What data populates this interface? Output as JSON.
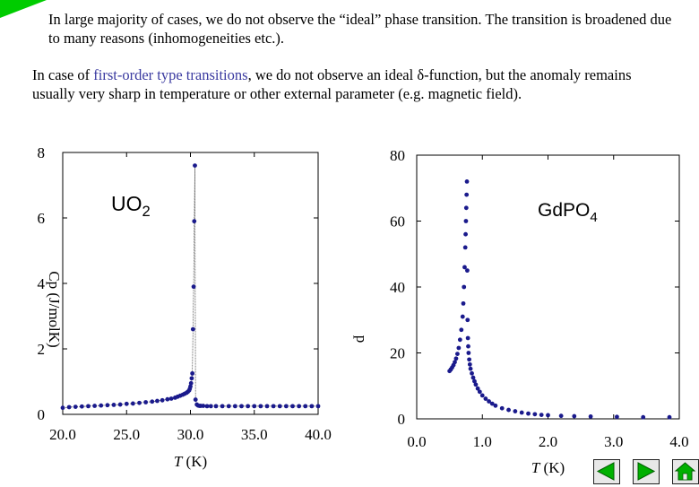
{
  "slide": {
    "intro_text": "In large majority of cases, we do not observe the “ideal” phase transition. The transition is broadened due to many reasons (inhomogeneities etc.).",
    "para_prefix": "In case of ",
    "para_highlight": "first-order type transitions",
    "para_suffix": ", we do not observe an ideal δ-function, but the anomaly remains usually very sharp in temperature or other external parameter (e.g. magnetic field).",
    "accent_color": "#3a3aa0",
    "corner_color": "#00cc00"
  },
  "chart_data": [
    {
      "type": "scatter",
      "title_main": "UO",
      "title_sub": "2",
      "ylabel_fragments": [
        "Cp",
        "(J/molK)"
      ],
      "xlabel_italic": "T",
      "xlabel_unit": " (K)",
      "xlim": [
        20,
        40
      ],
      "ylim": [
        0,
        8
      ],
      "xticks": [
        "20.0",
        "25.0",
        "30.0",
        "35.0",
        "40.0"
      ],
      "yticks": [
        "0",
        "2",
        "4",
        "6",
        "8"
      ],
      "marker_color": "#1a1a8c",
      "connected": true,
      "x": [
        20.0,
        20.5,
        21.0,
        21.5,
        22.0,
        22.5,
        23.0,
        23.5,
        24.0,
        24.5,
        25.0,
        25.5,
        26.0,
        26.5,
        27.0,
        27.4,
        27.8,
        28.2,
        28.5,
        28.8,
        29.0,
        29.2,
        29.4,
        29.55,
        29.7,
        29.8,
        29.9,
        29.95,
        30.0,
        30.05,
        30.1,
        30.15,
        30.2,
        30.25,
        30.3,
        30.35,
        30.4,
        30.5,
        30.6,
        30.7,
        30.8,
        31.0,
        31.3,
        31.6,
        32.0,
        32.5,
        33.0,
        33.5,
        34.0,
        34.5,
        35.0,
        35.5,
        36.0,
        36.5,
        37.0,
        37.5,
        38.0,
        38.5,
        39.0,
        39.5,
        40.0
      ],
      "y": [
        0.2,
        0.22,
        0.23,
        0.24,
        0.25,
        0.26,
        0.27,
        0.28,
        0.29,
        0.3,
        0.32,
        0.33,
        0.35,
        0.37,
        0.39,
        0.41,
        0.43,
        0.46,
        0.48,
        0.51,
        0.54,
        0.57,
        0.6,
        0.63,
        0.66,
        0.69,
        0.73,
        0.78,
        0.85,
        0.95,
        1.1,
        1.25,
        2.6,
        3.9,
        5.9,
        7.6,
        0.45,
        0.3,
        0.27,
        0.26,
        0.26,
        0.26,
        0.25,
        0.25,
        0.25,
        0.25,
        0.25,
        0.25,
        0.25,
        0.25,
        0.25,
        0.25,
        0.25,
        0.25,
        0.25,
        0.25,
        0.25,
        0.25,
        0.25,
        0.25,
        0.25
      ]
    },
    {
      "type": "scatter",
      "title_main": "GdPO",
      "title_sub": "4",
      "ylabel_fragments": [
        "p"
      ],
      "xlabel_italic": "T",
      "xlabel_unit": " (K)",
      "xlim": [
        0,
        4
      ],
      "ylim": [
        0,
        80
      ],
      "xticks": [
        "0.0",
        "1.0",
        "2.0",
        "3.0",
        "4.0"
      ],
      "yticks": [
        "0",
        "20",
        "40",
        "60",
        "80"
      ],
      "marker_color": "#1a1a8c",
      "connected": false,
      "x": [
        0.5,
        0.52,
        0.54,
        0.56,
        0.58,
        0.6,
        0.62,
        0.64,
        0.66,
        0.68,
        0.7,
        0.71,
        0.72,
        0.73,
        0.74,
        0.745,
        0.75,
        0.755,
        0.76,
        0.765,
        0.77,
        0.775,
        0.78,
        0.785,
        0.79,
        0.8,
        0.81,
        0.82,
        0.84,
        0.86,
        0.88,
        0.9,
        0.93,
        0.96,
        1.0,
        1.05,
        1.1,
        1.15,
        1.2,
        1.3,
        1.4,
        1.5,
        1.6,
        1.7,
        1.8,
        1.9,
        2.0,
        2.2,
        2.4,
        2.65,
        3.05,
        3.45,
        3.85
      ],
      "y": [
        14.5,
        15.0,
        15.6,
        16.3,
        17.2,
        18.3,
        19.7,
        21.5,
        24.0,
        27.0,
        31.0,
        35.0,
        40.0,
        46.0,
        52.0,
        56.0,
        60.0,
        64.0,
        68.0,
        72.0,
        45.0,
        30.0,
        24.5,
        22.0,
        20.0,
        18.0,
        16.5,
        15.2,
        13.8,
        12.5,
        11.4,
        10.4,
        9.2,
        8.2,
        7.1,
        6.1,
        5.3,
        4.6,
        4.0,
        3.2,
        2.7,
        2.3,
        1.9,
        1.6,
        1.4,
        1.2,
        1.1,
        0.9,
        0.8,
        0.7,
        0.6,
        0.5,
        0.5
      ]
    }
  ]
}
